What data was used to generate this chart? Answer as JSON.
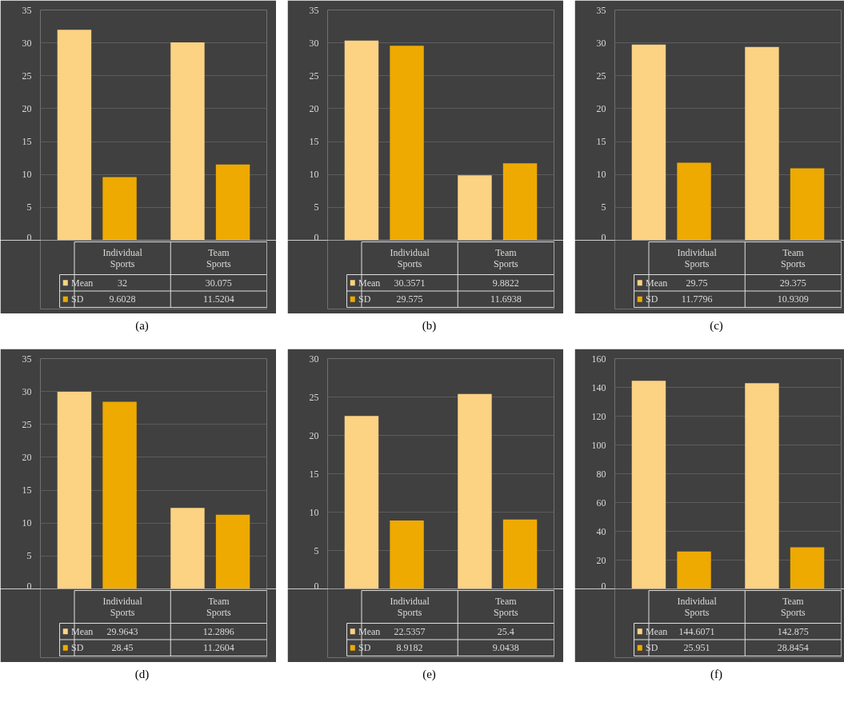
{
  "chart_data": [
    {
      "type": "bar",
      "annotations": [
        "(a)"
      ],
      "categories": [
        "Individual Sports",
        "Team Sports"
      ],
      "series": [
        {
          "name": "Mean",
          "color": "#fcd283",
          "values": [
            32,
            30.075
          ]
        },
        {
          "name": "SD",
          "color": "#eeaa00",
          "values": [
            9.6028,
            11.5204
          ]
        }
      ],
      "ylim": [
        0,
        35
      ],
      "yticks": [
        0,
        5,
        10,
        15,
        20,
        25,
        30,
        35
      ],
      "grid": "y",
      "legend": "bottom",
      "data_labels": true,
      "tick_labels": "y"
    },
    {
      "type": "bar",
      "annotations": [
        "(b)"
      ],
      "categories": [
        "Individual Sports",
        "Team Sports"
      ],
      "series": [
        {
          "name": "Mean",
          "color": "#fcd283",
          "values": [
            30.3571,
            9.8822
          ]
        },
        {
          "name": "SD",
          "color": "#eeaa00",
          "values": [
            29.575,
            11.6938
          ]
        }
      ],
      "ylim": [
        0,
        35
      ],
      "yticks": [
        0,
        5,
        10,
        15,
        20,
        25,
        30,
        35
      ],
      "grid": "y",
      "legend": "bottom",
      "data_labels": true,
      "tick_labels": "y"
    },
    {
      "type": "bar",
      "annotations": [
        "(c)"
      ],
      "categories": [
        "Individual Sports",
        "Team Sports"
      ],
      "series": [
        {
          "name": "Mean",
          "color": "#fcd283",
          "values": [
            29.75,
            29.375
          ]
        },
        {
          "name": "SD",
          "color": "#eeaa00",
          "values": [
            11.7796,
            10.9309
          ]
        }
      ],
      "ylim": [
        0,
        35
      ],
      "yticks": [
        0,
        5,
        10,
        15,
        20,
        25,
        30,
        35
      ],
      "grid": "y",
      "legend": "bottom",
      "data_labels": true,
      "tick_labels": "y"
    },
    {
      "type": "bar",
      "annotations": [
        "(d)"
      ],
      "categories": [
        "Individual Sports",
        "Team Sports"
      ],
      "series": [
        {
          "name": "Mean",
          "color": "#fcd283",
          "values": [
            29.9643,
            12.2896
          ]
        },
        {
          "name": "SD",
          "color": "#eeaa00",
          "values": [
            28.45,
            11.2604
          ]
        }
      ],
      "ylim": [
        0,
        35
      ],
      "yticks": [
        0,
        5,
        10,
        15,
        20,
        25,
        30,
        35
      ],
      "grid": "y",
      "legend": "bottom",
      "data_labels": true,
      "tick_labels": "y"
    },
    {
      "type": "bar",
      "annotations": [
        "(e)"
      ],
      "categories": [
        "Individual Sports",
        "Team Sports"
      ],
      "series": [
        {
          "name": "Mean",
          "color": "#fcd283",
          "values": [
            22.5357,
            25.4
          ]
        },
        {
          "name": "SD",
          "color": "#eeaa00",
          "values": [
            8.9182,
            9.0438
          ]
        }
      ],
      "ylim": [
        0,
        30
      ],
      "yticks": [
        0,
        5,
        10,
        15,
        20,
        25,
        30
      ],
      "grid": "y",
      "legend": "bottom",
      "data_labels": true,
      "tick_labels": "y"
    },
    {
      "type": "bar",
      "annotations": [
        "(f)"
      ],
      "categories": [
        "Individual Sports",
        "Team Sports"
      ],
      "series": [
        {
          "name": "Mean",
          "color": "#fcd283",
          "values": [
            144.6071,
            142.875
          ]
        },
        {
          "name": "SD",
          "color": "#eeaa00",
          "values": [
            25.951,
            28.8454
          ]
        }
      ],
      "ylim": [
        0,
        160
      ],
      "yticks": [
        0,
        20,
        40,
        60,
        80,
        100,
        120,
        140,
        160
      ],
      "grid": "y",
      "legend": "bottom",
      "data_labels": true,
      "tick_labels": "y"
    }
  ]
}
